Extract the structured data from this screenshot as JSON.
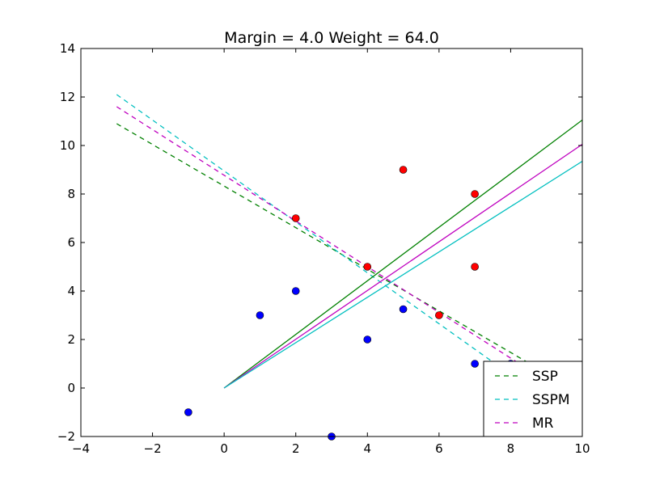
{
  "chart_data": {
    "type": "scatter",
    "title": "Margin = 4.0 Weight = 64.0",
    "xlim": [
      -4,
      10
    ],
    "ylim": [
      -2,
      14
    ],
    "xticks": [
      -4,
      -2,
      0,
      2,
      4,
      6,
      8,
      10
    ],
    "yticks": [
      -2,
      0,
      2,
      4,
      6,
      8,
      10,
      12,
      14
    ],
    "xtick_labels": [
      "−4",
      "−2",
      "0",
      "2",
      "4",
      "6",
      "8",
      "10"
    ],
    "ytick_labels": [
      "−2",
      "0",
      "2",
      "4",
      "6",
      "8",
      "10",
      "12",
      "14"
    ],
    "grid": false,
    "legend_position": "lower-right",
    "points": {
      "red": {
        "color": "#ff0000",
        "values": [
          [
            2,
            7
          ],
          [
            4,
            5
          ],
          [
            5,
            9
          ],
          [
            6,
            3
          ],
          [
            7,
            8
          ],
          [
            7,
            5
          ]
        ]
      },
      "blue": {
        "color": "#0000ff",
        "values": [
          [
            -1,
            -1
          ],
          [
            1,
            3
          ],
          [
            2,
            4
          ],
          [
            3,
            -2
          ],
          [
            4,
            2
          ],
          [
            5,
            3.25
          ],
          [
            7,
            1
          ],
          [
            8,
            1
          ]
        ]
      }
    },
    "series": [
      {
        "name": "SSP",
        "color": "#008000",
        "style": "dashed",
        "x": [
          -3,
          8.6
        ],
        "y": [
          10.9,
          0.95
        ]
      },
      {
        "name": "SSPM",
        "color": "#00bfbf",
        "style": "dashed",
        "x": [
          -3,
          8.0
        ],
        "y": [
          12.1,
          0.55
        ]
      },
      {
        "name": "MR",
        "color": "#bf00bf",
        "style": "dashed",
        "x": [
          -3,
          8.3
        ],
        "y": [
          11.6,
          0.95
        ]
      },
      {
        "name": "",
        "color": "#008000",
        "style": "solid",
        "x": [
          0,
          10
        ],
        "y": [
          0,
          11.05
        ]
      },
      {
        "name": "",
        "color": "#bf00bf",
        "style": "solid",
        "x": [
          0,
          10
        ],
        "y": [
          0,
          10.05
        ]
      },
      {
        "name": "",
        "color": "#00bfbf",
        "style": "solid",
        "x": [
          0,
          10
        ],
        "y": [
          0,
          9.35
        ]
      }
    ]
  }
}
